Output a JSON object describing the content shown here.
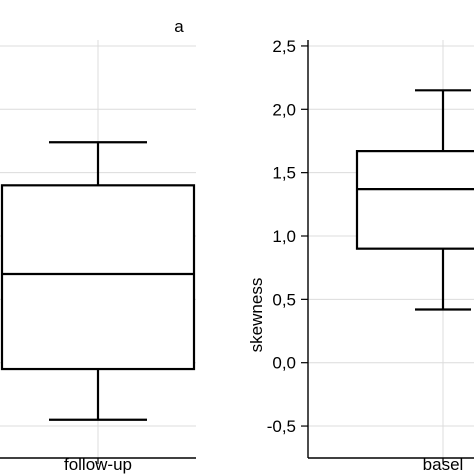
{
  "figure": {
    "panel_label": "a"
  },
  "chart_data": [
    {
      "type": "box",
      "title": "",
      "ylabel": "",
      "categories": [
        "follow-up"
      ],
      "ylim": [
        -0.55,
        2.6
      ],
      "y_ticks": [],
      "grid": true,
      "boxes": [
        {
          "category": "follow-up",
          "whisker_low": -0.45,
          "q1": -0.05,
          "median": 0.7,
          "q3": 1.4,
          "whisker_high": 1.74
        }
      ]
    },
    {
      "type": "box",
      "title": "",
      "ylabel": "skewness",
      "categories": [
        "basel"
      ],
      "ylim": [
        -0.55,
        2.6
      ],
      "y_ticks": [
        "2,5",
        "2,0",
        "1,5",
        "1,0",
        "0,5",
        "0,0",
        "-0,5"
      ],
      "y_tick_values": [
        2.5,
        2.0,
        1.5,
        1.0,
        0.5,
        0.0,
        -0.5
      ],
      "grid": true,
      "boxes": [
        {
          "category": "basel",
          "whisker_low": 0.42,
          "q1": 0.9,
          "median": 1.37,
          "q3": 1.67,
          "whisker_high": 2.15
        }
      ]
    }
  ]
}
